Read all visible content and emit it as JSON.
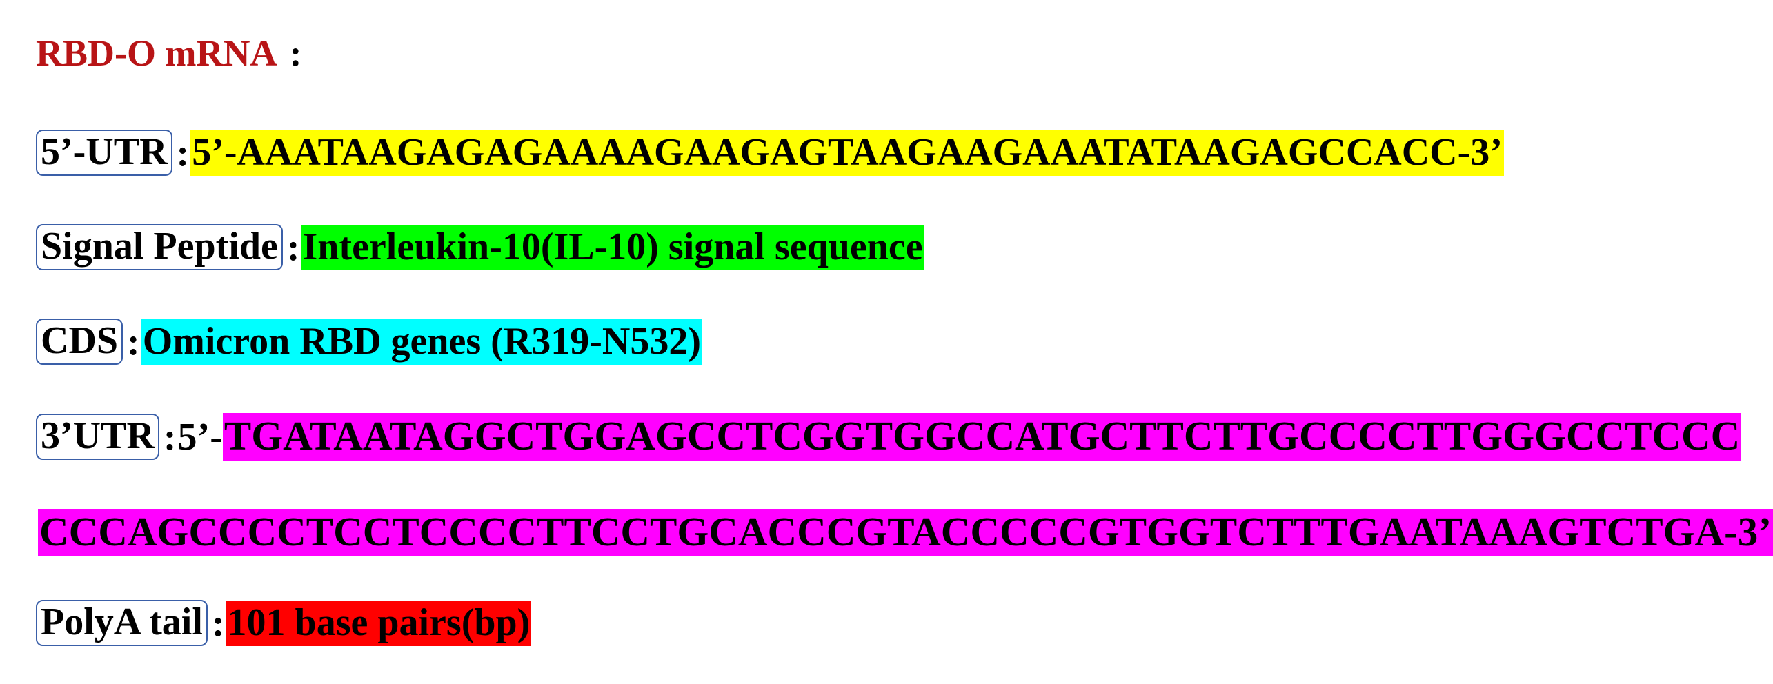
{
  "title": {
    "name": "RBD-O mRNA",
    "colon": ":"
  },
  "rows": [
    {
      "label": "5’-UTR",
      "separator": ":",
      "prefix": "",
      "value": "5’-AAATAAGAGAGAAAAGAAGAGTAAGAAGAAATATAAGAGCCACC-3’",
      "highlight": "#ffff00"
    },
    {
      "label": "Signal Peptide",
      "separator": ":",
      "prefix": "",
      "value": "Interleukin-10(IL-10)  signal sequence",
      "highlight": "#00ff00"
    },
    {
      "label": "CDS",
      "separator": ":",
      "prefix": "",
      "value": "Omicron RBD genes (R319-N532)",
      "highlight": "#00ffff"
    },
    {
      "label": "3’UTR",
      "separator": ":",
      "prefix": "5’-",
      "value": "TGATAATAGGCTGGAGCCTCGGTGGCCATGCTTCTTGCCCCTTGGGCCTCCC",
      "highlight": "#ff00ff"
    },
    {
      "label": "",
      "separator": "",
      "prefix": "",
      "value": "CCCAGCCCCTCCTCCCCTTCCTGCACCCGTACCCCCGTGGTCTTTGAATAAAGTCTGA-3’",
      "highlight": "#ff00ff"
    },
    {
      "label": "PolyA tail",
      "separator": ":",
      "prefix": "",
      "value": "101 base pairs(bp)",
      "highlight": "#ff0000"
    }
  ]
}
